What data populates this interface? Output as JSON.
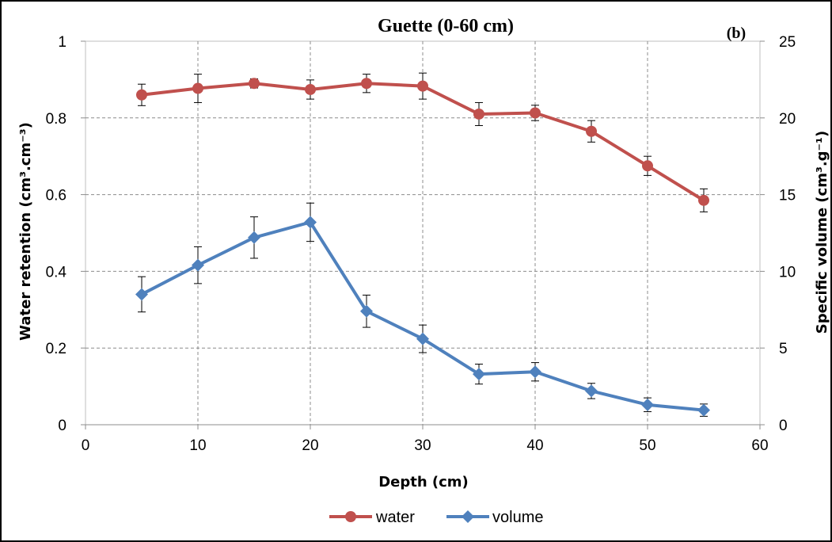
{
  "chart_data": {
    "type": "line",
    "title": "Guette (0-60 cm)",
    "panel_label": "(b)",
    "xlabel": "Depth (cm)",
    "ylabel_left": "Water retention (cm³.cm⁻³)",
    "ylabel_right": "Specific volume (cm³.g⁻¹)",
    "xlim": [
      0,
      60
    ],
    "ylim_left": [
      0,
      1
    ],
    "ylim_right": [
      0,
      25
    ],
    "x_ticks": [
      "0",
      "10",
      "20",
      "30",
      "40",
      "50",
      "60"
    ],
    "y_left_ticks": [
      "0",
      "0.2",
      "0.4",
      "0.6",
      "0.8",
      "1"
    ],
    "y_right_ticks": [
      "0",
      "5",
      "10",
      "15",
      "20",
      "25"
    ],
    "grid": true,
    "legend_position": "bottom",
    "x": [
      5,
      10,
      15,
      20,
      25,
      30,
      35,
      40,
      45,
      50,
      55
    ],
    "series": [
      {
        "name": "water",
        "axis": "left",
        "marker": "circle",
        "color": "#C0504D",
        "values": [
          0.86,
          0.877,
          0.89,
          0.874,
          0.89,
          0.883,
          0.81,
          0.813,
          0.765,
          0.675,
          0.585
        ],
        "errors": [
          0.028,
          0.037,
          0.012,
          0.025,
          0.024,
          0.034,
          0.03,
          0.02,
          0.028,
          0.025,
          0.03
        ]
      },
      {
        "name": "volume",
        "axis": "right",
        "marker": "diamond",
        "color": "#4F81BD",
        "values": [
          8.5,
          10.4,
          12.2,
          13.2,
          7.4,
          5.6,
          3.3,
          3.45,
          2.2,
          1.3,
          0.95
        ],
        "errors": [
          1.15,
          1.2,
          1.35,
          1.25,
          1.05,
          0.9,
          0.65,
          0.6,
          0.5,
          0.45,
          0.4
        ]
      }
    ]
  }
}
